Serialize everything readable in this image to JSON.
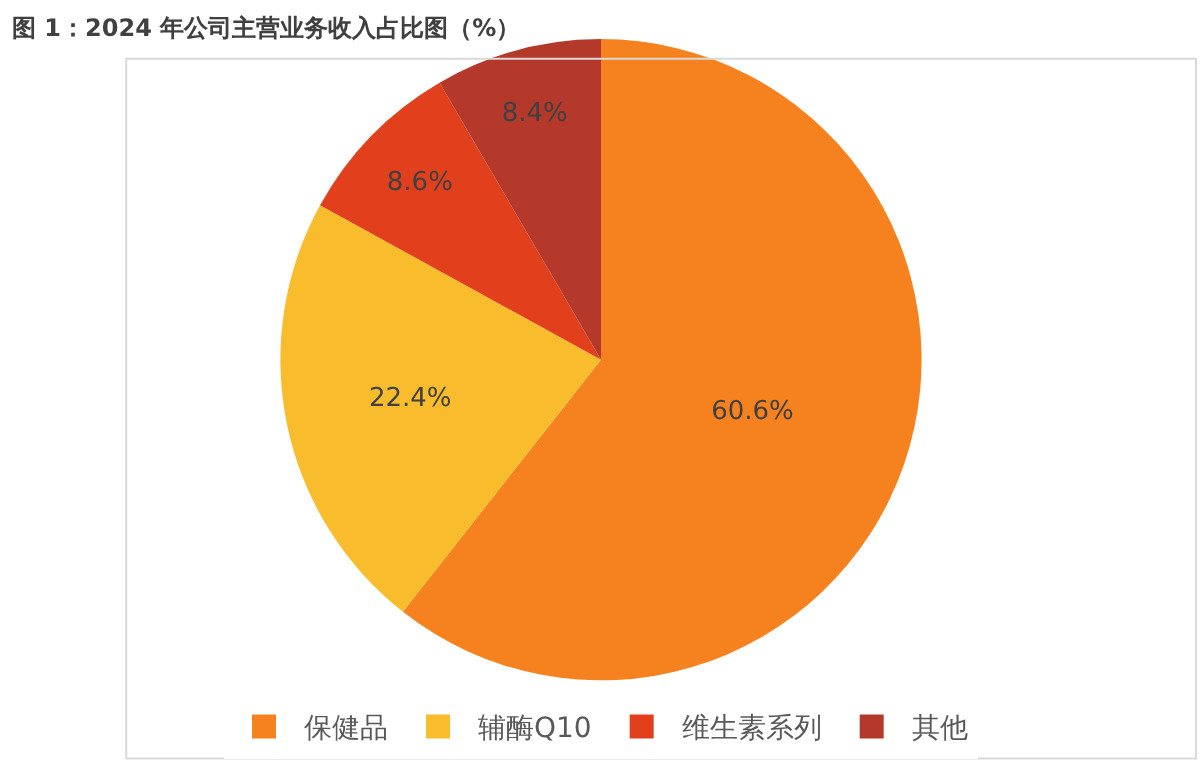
{
  "chart_data": {
    "type": "pie",
    "title": "图 1：2024 年公司主营业务收入占比图（%）",
    "categories": [
      "保健品",
      "辅酶Q10",
      "维生素系列",
      "其他"
    ],
    "values": [
      60.6,
      22.4,
      8.6,
      8.4
    ],
    "colors": [
      "#f5821f",
      "#f9bc2c",
      "#e2401c",
      "#b5392b"
    ],
    "value_labels": [
      "60.6%",
      "22.4%",
      "8.6%",
      "8.4%"
    ],
    "legend": "bottom"
  }
}
